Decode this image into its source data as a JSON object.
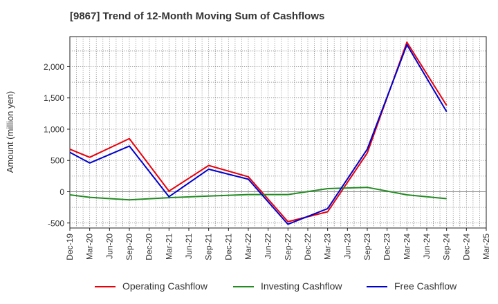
{
  "chart_data": {
    "type": "line",
    "title": "[9867]  Trend of 12-Month Moving Sum of Cashflows",
    "xlabel": "",
    "ylabel": "Amount (million yen)",
    "x_ticks": [
      "Dec-19",
      "Mar-20",
      "Jun-20",
      "Sep-20",
      "Dec-20",
      "Mar-21",
      "Jun-21",
      "Sep-21",
      "Dec-21",
      "Mar-22",
      "Jun-22",
      "Sep-22",
      "Dec-22",
      "Mar-23",
      "Jun-23",
      "Sep-23",
      "Dec-23",
      "Mar-24",
      "Jun-24",
      "Sep-24",
      "Dec-24",
      "Mar-25"
    ],
    "y_ticks": [
      -500,
      0,
      500,
      1000,
      1500,
      2000
    ],
    "y_tick_labels": [
      "-500",
      "0",
      "500",
      "1,000",
      "1,500",
      "2,000"
    ],
    "ylim": [
      -580,
      2480
    ],
    "grid": true,
    "legend_position": "bottom",
    "series": [
      {
        "name": "Operating Cashflow",
        "color": "#e8000b",
        "x": [
          "Dec-19",
          "Mar-20",
          "Sep-20",
          "Mar-21",
          "Sep-21",
          "Mar-22",
          "Sep-22",
          "Mar-23",
          "Sep-23",
          "Mar-24",
          "Sep-24"
        ],
        "values": [
          680,
          550,
          850,
          10,
          420,
          240,
          -480,
          -320,
          620,
          2390,
          1380
        ]
      },
      {
        "name": "Investing Cashflow",
        "color": "#228b22",
        "x": [
          "Dec-19",
          "Mar-20",
          "Sep-20",
          "Mar-21",
          "Sep-21",
          "Mar-22",
          "Sep-22",
          "Mar-23",
          "Sep-23",
          "Mar-24",
          "Sep-24"
        ],
        "values": [
          -50,
          -90,
          -130,
          -95,
          -70,
          -45,
          -45,
          50,
          70,
          -50,
          -110
        ]
      },
      {
        "name": "Free Cashflow",
        "color": "#0000cd",
        "x": [
          "Dec-19",
          "Mar-20",
          "Sep-20",
          "Mar-21",
          "Sep-21",
          "Mar-22",
          "Sep-22",
          "Mar-23",
          "Sep-23",
          "Mar-24",
          "Sep-24"
        ],
        "values": [
          630,
          460,
          730,
          -80,
          360,
          200,
          -520,
          -270,
          680,
          2350,
          1280
        ]
      }
    ]
  }
}
